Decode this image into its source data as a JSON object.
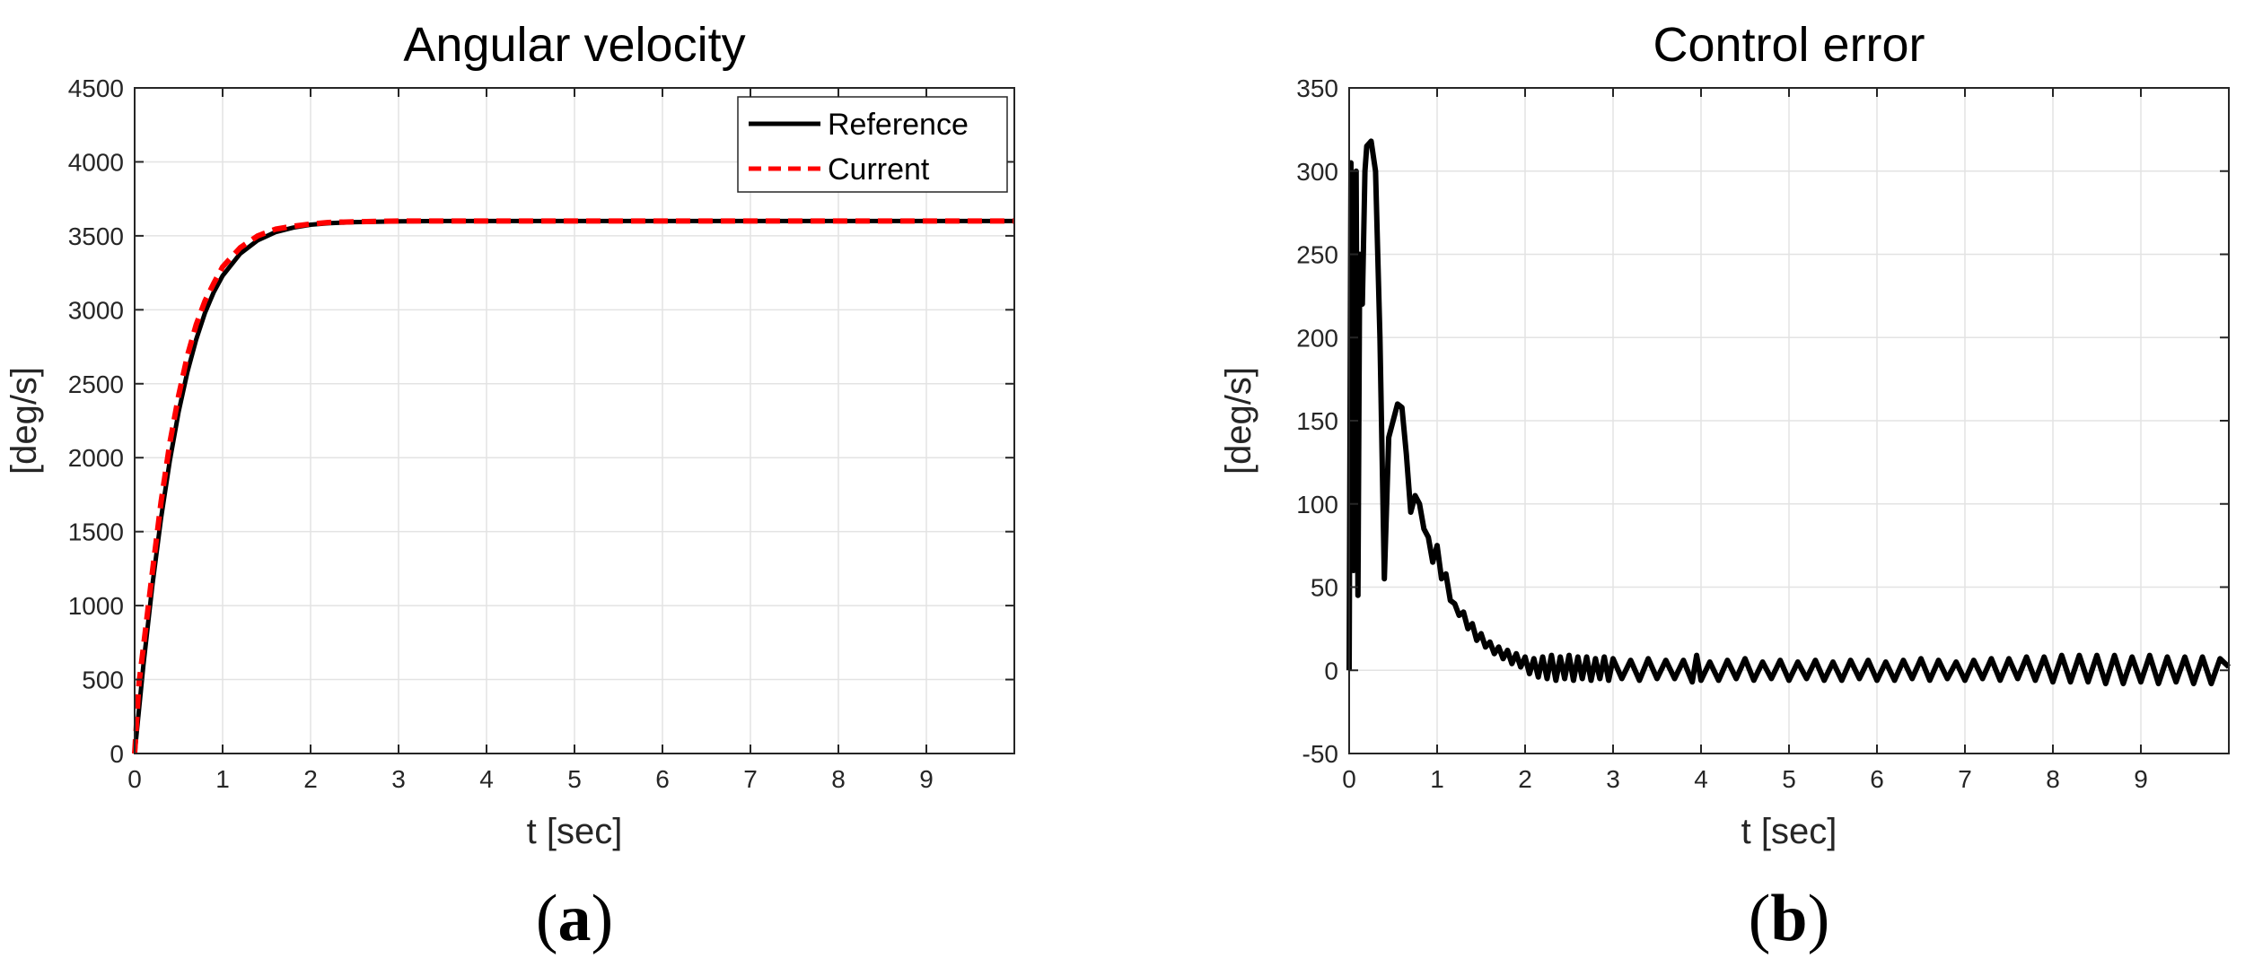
{
  "chart_data": [
    {
      "type": "line",
      "title": "Angular velocity",
      "xlabel": "t [sec]",
      "ylabel": "[deg/s]",
      "xlim": [
        0,
        10
      ],
      "ylim": [
        0,
        4500
      ],
      "xticks": [
        "0",
        "1",
        "2",
        "3",
        "4",
        "5",
        "6",
        "7",
        "8",
        "9"
      ],
      "yticks": [
        "0",
        "500",
        "1000",
        "1500",
        "2000",
        "2500",
        "3000",
        "3500",
        "4000",
        "4500"
      ],
      "grid": true,
      "legend_position": "top-right",
      "panel_label": "a",
      "series": [
        {
          "name": "Reference",
          "color": "#000000",
          "style": "solid",
          "x": [
            0,
            0.1,
            0.2,
            0.3,
            0.4,
            0.5,
            0.6,
            0.7,
            0.8,
            0.9,
            1.0,
            1.2,
            1.4,
            1.6,
            1.8,
            2.0,
            2.2,
            2.5,
            3.0,
            3.5,
            4,
            5,
            6,
            7,
            8,
            9,
            10
          ],
          "y": [
            0,
            600,
            1130,
            1590,
            1980,
            2310,
            2580,
            2800,
            2980,
            3120,
            3230,
            3380,
            3470,
            3525,
            3555,
            3575,
            3585,
            3593,
            3598,
            3600,
            3600,
            3600,
            3600,
            3600,
            3600,
            3600,
            3600
          ]
        },
        {
          "name": "Current",
          "color": "#ff0000",
          "style": "dashed",
          "x": [
            0,
            0.05,
            0.1,
            0.2,
            0.3,
            0.4,
            0.5,
            0.6,
            0.7,
            0.8,
            0.9,
            1.0,
            1.2,
            1.4,
            1.6,
            1.8,
            2.0,
            2.2,
            2.5,
            3.0,
            3.5,
            4,
            5,
            6,
            7,
            8,
            9,
            10
          ],
          "y": [
            0,
            480,
            720,
            1220,
            1700,
            2100,
            2420,
            2690,
            2900,
            3060,
            3180,
            3290,
            3420,
            3500,
            3545,
            3565,
            3580,
            3590,
            3595,
            3600,
            3600,
            3600,
            3600,
            3600,
            3600,
            3600,
            3600,
            3600
          ]
        }
      ]
    },
    {
      "type": "line",
      "title": "Control error",
      "xlabel": "t [sec]",
      "ylabel": "[deg/s]",
      "xlim": [
        0,
        10
      ],
      "ylim": [
        -50,
        350
      ],
      "xticks": [
        "0",
        "1",
        "2",
        "3",
        "4",
        "5",
        "6",
        "7",
        "8",
        "9"
      ],
      "yticks": [
        "-50",
        "0",
        "50",
        "100",
        "150",
        "200",
        "250",
        "300",
        "350"
      ],
      "grid": true,
      "panel_label": "b",
      "series": [
        {
          "color": "#000000",
          "style": "solid",
          "x": [
            0,
            0.02,
            0.05,
            0.08,
            0.1,
            0.12,
            0.15,
            0.18,
            0.2,
            0.25,
            0.3,
            0.35,
            0.4,
            0.45,
            0.5,
            0.55,
            0.6,
            0.65,
            0.7,
            0.75,
            0.8,
            0.85,
            0.9,
            0.95,
            1.0,
            1.05,
            1.1,
            1.15,
            1.2,
            1.25,
            1.3,
            1.35,
            1.4,
            1.45,
            1.5,
            1.55,
            1.6,
            1.65,
            1.7,
            1.75,
            1.8,
            1.85,
            1.9,
            1.95,
            2.0,
            2.05,
            2.1,
            2.15,
            2.2,
            2.25,
            2.3,
            2.35,
            2.4,
            2.45,
            2.5,
            2.55,
            2.6,
            2.65,
            2.7,
            2.75,
            2.8,
            2.85,
            2.9,
            2.95,
            3.0,
            3.1,
            3.2,
            3.3,
            3.4,
            3.5,
            3.6,
            3.7,
            3.8,
            3.9,
            3.95,
            4.0,
            4.1,
            4.2,
            4.3,
            4.4,
            4.5,
            4.6,
            4.7,
            4.8,
            4.9,
            5.0,
            5.1,
            5.2,
            5.3,
            5.4,
            5.5,
            5.6,
            5.7,
            5.8,
            5.9,
            6.0,
            6.1,
            6.2,
            6.3,
            6.4,
            6.5,
            6.6,
            6.7,
            6.8,
            6.9,
            7.0,
            7.1,
            7.2,
            7.3,
            7.4,
            7.5,
            7.6,
            7.7,
            7.8,
            7.9,
            8.0,
            8.1,
            8.2,
            8.3,
            8.4,
            8.5,
            8.6,
            8.7,
            8.8,
            8.9,
            9.0,
            9.1,
            9.2,
            9.3,
            9.4,
            9.5,
            9.6,
            9.7,
            9.8,
            9.9,
            10.0
          ],
          "y": [
            0,
            305,
            60,
            300,
            45,
            250,
            220,
            300,
            315,
            318,
            300,
            200,
            55,
            140,
            150,
            160,
            158,
            130,
            95,
            105,
            100,
            85,
            80,
            65,
            75,
            55,
            58,
            42,
            40,
            33,
            35,
            25,
            28,
            18,
            22,
            14,
            17,
            10,
            14,
            7,
            12,
            4,
            10,
            2,
            8,
            -2,
            7,
            -4,
            8,
            -5,
            9,
            -6,
            8,
            -5,
            9,
            -6,
            8,
            -5,
            8,
            -6,
            7,
            -5,
            8,
            -6,
            7,
            -5,
            6,
            -6,
            7,
            -5,
            6,
            -5,
            6,
            -7,
            9,
            -6,
            5,
            -6,
            6,
            -5,
            7,
            -6,
            5,
            -5,
            6,
            -6,
            5,
            -5,
            6,
            -6,
            5,
            -6,
            6,
            -5,
            6,
            -6,
            5,
            -6,
            6,
            -5,
            7,
            -6,
            6,
            -5,
            5,
            -6,
            6,
            -5,
            7,
            -6,
            7,
            -5,
            8,
            -6,
            8,
            -7,
            9,
            -7,
            9,
            -7,
            9,
            -8,
            9,
            -8,
            8,
            -7,
            9,
            -8,
            8,
            -7,
            8,
            -8,
            8,
            -8,
            7,
            2
          ]
        }
      ]
    }
  ]
}
